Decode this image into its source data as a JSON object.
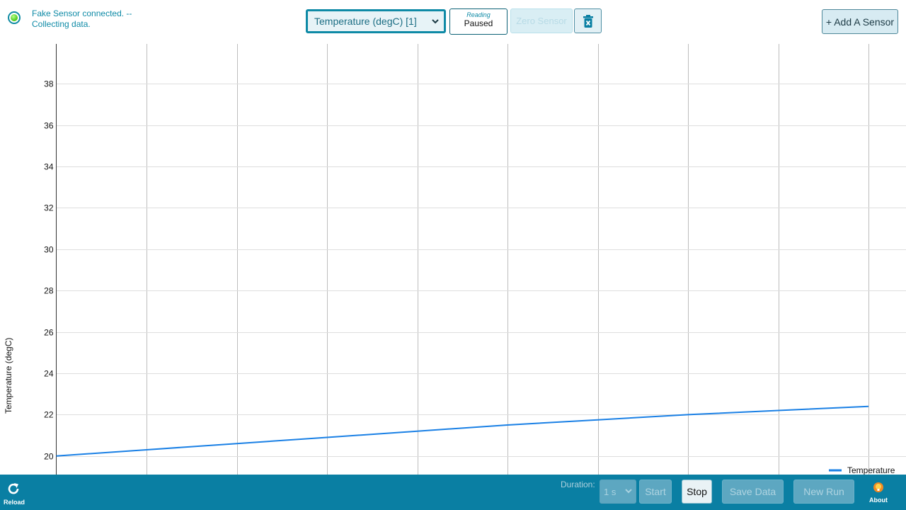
{
  "status": {
    "text": "Fake Sensor connected. -- Collecting data."
  },
  "toolbar": {
    "sensor_selected": "Temperature (degC) [1]",
    "reading_label": "Reading",
    "reading_value": "Paused",
    "zero_sensor_label": "Zero Sensor",
    "add_sensor_label": "+ Add A Sensor"
  },
  "chart_data": {
    "type": "line",
    "ylabel": "Temperature (degC)",
    "xlabel": "",
    "ylim": [
      19.1,
      40
    ],
    "xlim": [
      0,
      9
    ],
    "y_ticks": [
      20,
      22,
      24,
      26,
      28,
      30,
      32,
      34,
      36,
      38
    ],
    "x_gridlines": [
      0,
      1,
      2,
      3,
      4,
      5,
      6,
      7,
      8,
      9
    ],
    "grid": true,
    "legend_position": "bottom-right",
    "series": [
      {
        "name": "Temperature",
        "color": "#1a80e5",
        "x": [
          0,
          1,
          2,
          3,
          4,
          5,
          6,
          7,
          8,
          9
        ],
        "y": [
          20.0,
          20.3,
          20.6,
          20.9,
          21.2,
          21.5,
          21.75,
          22.0,
          22.2,
          22.4
        ]
      }
    ]
  },
  "bottom": {
    "reload_label": "Reload",
    "duration_label": "Duration:",
    "duration_value": "1 s",
    "start_label": "Start",
    "stop_label": "Stop",
    "save_label": "Save Data",
    "new_run_label": "New Run",
    "about_label": "About"
  },
  "colors": {
    "accent": "#0a7fa3",
    "line": "#1a80e5",
    "status_green": "#44c514"
  }
}
